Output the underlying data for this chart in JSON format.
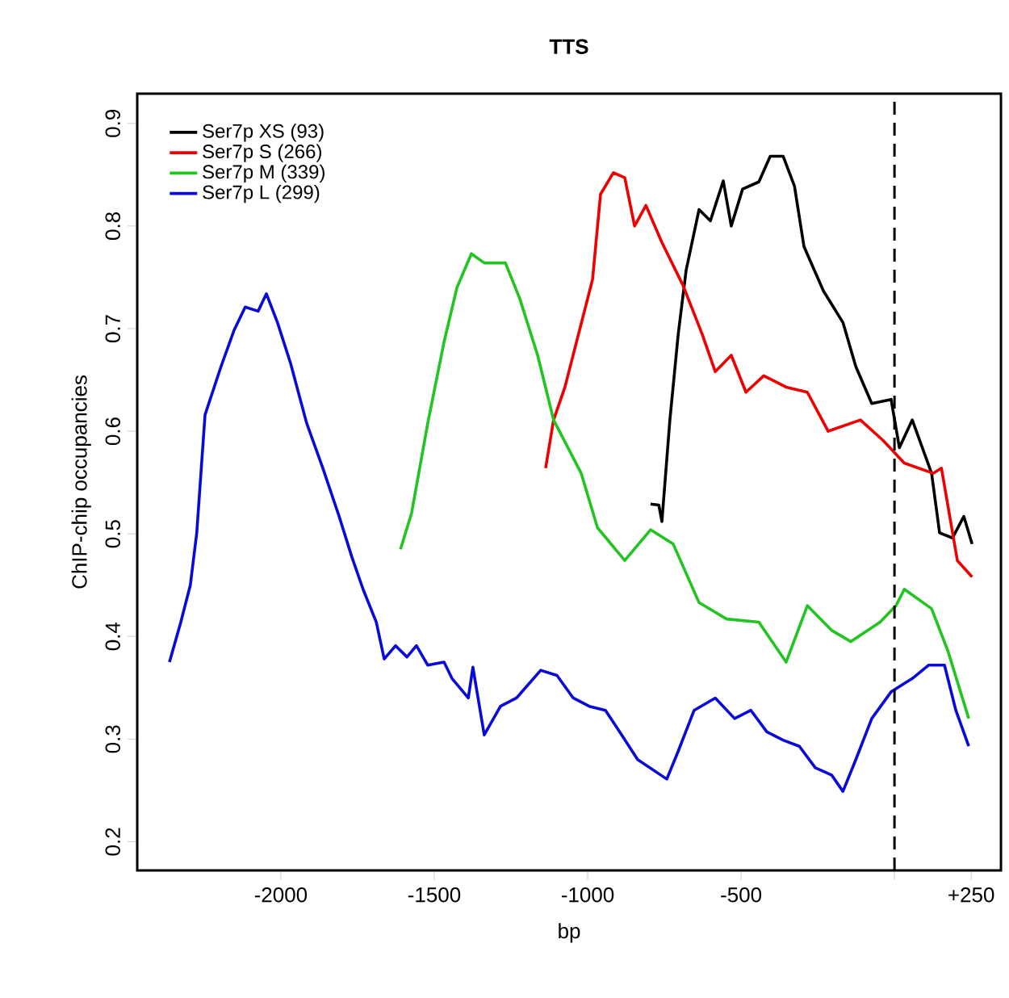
{
  "chart_data": {
    "type": "line",
    "title": "TTS",
    "xlabel": "bp",
    "ylabel": "ChIP-chip occupancies",
    "xlim": [
      -2468,
      347
    ],
    "ylim": [
      0.172,
      0.929
    ],
    "xticks": [
      -2000,
      -1500,
      -1000,
      -500,
      {
        "value": 0,
        "label": null
      },
      {
        "value": 250,
        "label": "+250"
      }
    ],
    "yticks": [
      0.2,
      0.3,
      0.4,
      0.5,
      0.6,
      0.7,
      0.8,
      0.9
    ],
    "legend": "top left",
    "grid": false,
    "marker": "none",
    "line_style": "solid",
    "ref_lines": [
      {
        "axis": "x",
        "value": 0,
        "color": "#000000",
        "line_style": "dashed"
      }
    ],
    "series": [
      {
        "name": "Ser7p XS (93)",
        "color": "#000000",
        "x": [
          -795,
          -768,
          -758,
          -732,
          -705,
          -679,
          -637,
          -600,
          -558,
          -532,
          -495,
          -442,
          -405,
          -363,
          -326,
          -295,
          -232,
          -168,
          -126,
          -74,
          -11,
          16,
          58,
          121,
          147,
          189,
          226,
          253
        ],
        "values": [
          0.529,
          0.528,
          0.512,
          0.611,
          0.694,
          0.757,
          0.816,
          0.805,
          0.844,
          0.8,
          0.836,
          0.843,
          0.868,
          0.868,
          0.839,
          0.78,
          0.737,
          0.706,
          0.663,
          0.627,
          0.631,
          0.584,
          0.611,
          0.559,
          0.501,
          0.496,
          0.517,
          0.49
        ]
      },
      {
        "name": "Ser7p S (266)",
        "color": "#ee0000",
        "x": [
          -1137,
          -1111,
          -1074,
          -984,
          -958,
          -916,
          -879,
          -847,
          -810,
          -758,
          -689,
          -626,
          -584,
          -532,
          -484,
          -426,
          -353,
          -284,
          -216,
          -111,
          -37,
          32,
          126,
          153,
          205,
          253
        ],
        "values": [
          0.564,
          0.611,
          0.643,
          0.748,
          0.831,
          0.852,
          0.847,
          0.8,
          0.82,
          0.784,
          0.742,
          0.694,
          0.658,
          0.674,
          0.638,
          0.654,
          0.643,
          0.638,
          0.6,
          0.611,
          0.591,
          0.569,
          0.559,
          0.564,
          0.474,
          0.458
        ]
      },
      {
        "name": "Ser7p M (339)",
        "color": "#22c422",
        "x": [
          -1610,
          -1574,
          -1521,
          -1468,
          -1426,
          -1379,
          -1337,
          -1268,
          -1221,
          -1163,
          -1111,
          -1021,
          -968,
          -879,
          -795,
          -721,
          -637,
          -547,
          -442,
          -353,
          -284,
          -205,
          -142,
          -47,
          5,
          32,
          121,
          174,
          242
        ],
        "values": [
          0.485,
          0.52,
          0.608,
          0.687,
          0.74,
          0.773,
          0.764,
          0.764,
          0.729,
          0.674,
          0.611,
          0.559,
          0.506,
          0.474,
          0.504,
          0.49,
          0.433,
          0.417,
          0.414,
          0.375,
          0.43,
          0.406,
          0.395,
          0.414,
          0.43,
          0.446,
          0.427,
          0.386,
          0.32
        ]
      },
      {
        "name": "Ser7p L (299)",
        "color": "#0a0ad8",
        "x": [
          -2363,
          -2326,
          -2295,
          -2274,
          -2247,
          -2195,
          -2153,
          -2116,
          -2074,
          -2047,
          -2011,
          -1968,
          -1916,
          -1863,
          -1810,
          -1768,
          -1732,
          -1689,
          -1663,
          -1626,
          -1589,
          -1558,
          -1521,
          -1468,
          -1442,
          -1389,
          -1374,
          -1337,
          -1284,
          -1232,
          -1153,
          -1100,
          -1047,
          -995,
          -942,
          -889,
          -837,
          -742,
          -705,
          -653,
          -584,
          -521,
          -468,
          -416,
          -363,
          -310,
          -258,
          -205,
          -168,
          -126,
          -74,
          -11,
          58,
          111,
          163,
          200,
          242
        ],
        "values": [
          0.375,
          0.414,
          0.45,
          0.501,
          0.616,
          0.663,
          0.698,
          0.721,
          0.717,
          0.734,
          0.706,
          0.666,
          0.608,
          0.564,
          0.517,
          0.477,
          0.446,
          0.414,
          0.378,
          0.391,
          0.38,
          0.391,
          0.372,
          0.375,
          0.359,
          0.34,
          0.37,
          0.304,
          0.332,
          0.34,
          0.367,
          0.362,
          0.34,
          0.332,
          0.328,
          0.304,
          0.28,
          0.261,
          0.288,
          0.328,
          0.34,
          0.32,
          0.328,
          0.307,
          0.299,
          0.293,
          0.272,
          0.265,
          0.249,
          0.28,
          0.32,
          0.346,
          0.359,
          0.372,
          0.372,
          0.328,
          0.293
        ]
      }
    ]
  }
}
